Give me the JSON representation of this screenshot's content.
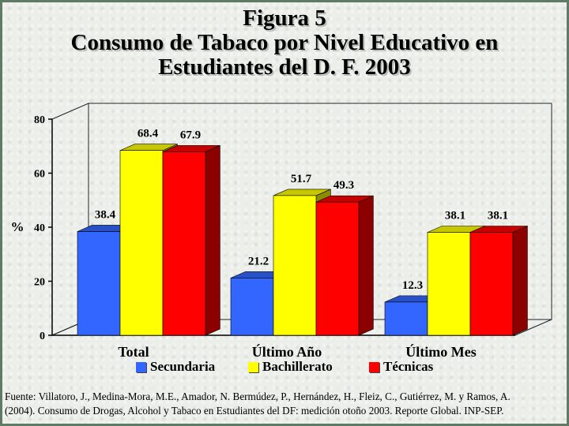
{
  "title_lines": [
    "Figura 5",
    "Consumo de Tabaco por Nivel Educativo en",
    "Estudiantes del D. F. 2003"
  ],
  "source_lines": [
    "Fuente: Villatoro, J., Medina-Mora, M.E., Amador, N. Bermúdez, P., Hernández, H., Fleiz, C., Gutiérrez, M. y Ramos, A.",
    "(2004). Consumo de Drogas, Alcohol y Tabaco en Estudiantes del DF: medición otoño 2003. Reporte Global. INP-SEP."
  ],
  "chart_data": {
    "type": "bar",
    "title": "Consumo de Tabaco por Nivel Educativo en Estudiantes del D. F. 2003",
    "categories": [
      "Total",
      "Último Año",
      "Último Mes"
    ],
    "series": [
      {
        "name": "Secundaria",
        "values": [
          38.4,
          21.2,
          12.3
        ],
        "labels": [
          "38.4",
          "21.2",
          "12.3"
        ],
        "color": "#3366ff"
      },
      {
        "name": "Bachillerato",
        "values": [
          68.4,
          51.7,
          38.1
        ],
        "labels": [
          "68.4",
          "51.7",
          "38.1"
        ],
        "color": "#ffff00"
      },
      {
        "name": "Técnicas",
        "values": [
          67.9,
          49.3,
          38.1
        ],
        "labels": [
          "67.9",
          "49.3",
          "38.1"
        ],
        "color": "#ff0000"
      }
    ],
    "xlabel": "",
    "ylabel": "%",
    "ylim": [
      0,
      80
    ],
    "yticks": [
      "0",
      "20",
      "40",
      "60",
      "80"
    ],
    "three_d": true,
    "legend_position": "bottom",
    "grid": false
  }
}
